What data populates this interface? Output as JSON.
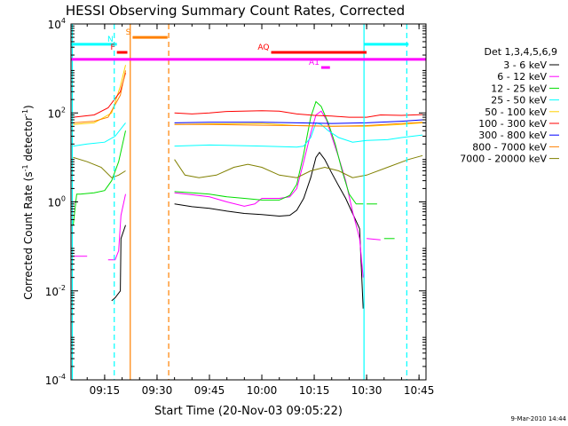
{
  "chart_data": {
    "type": "line",
    "title": "HESSI Observing Summary Count Rates, Corrected",
    "xlabel": "Start Time (20-Nov-03 09:05:22)",
    "ylabel_main": "Corrected Count Rate (s",
    "ylabel_exp1": "-1",
    "ylabel_mid": " detector",
    "ylabel_exp2": "-1",
    "ylabel_end": ")",
    "yscale": "log",
    "ylim": [
      0.0001,
      10000
    ],
    "xlim": [
      "09:05:22",
      "10:47:00"
    ],
    "xticks": [
      "09:15",
      "09:30",
      "09:45",
      "10:00",
      "10:15",
      "10:30",
      "10:45"
    ],
    "yticks": [
      {
        "base": "10",
        "exp": "-4",
        "value": 0.0001
      },
      {
        "base": "10",
        "exp": "-2",
        "value": 0.01
      },
      {
        "base": "10",
        "exp": "0",
        "value": 1
      },
      {
        "base": "10",
        "exp": "2",
        "value": 100
      },
      {
        "base": "10",
        "exp": "4",
        "value": 10000
      }
    ],
    "legend_title": "Det 1,3,4,5,6,9",
    "legend_position": "right",
    "series": [
      {
        "name": "3 - 6 keV",
        "color": "#000000",
        "segments": [
          [
            [
              "09:17:00",
              0.006
            ],
            [
              "09:18:00",
              0.007
            ],
            [
              "09:19:30",
              0.01
            ],
            [
              "09:19:40",
              0.15
            ],
            [
              "09:21:00",
              0.3
            ]
          ],
          [
            [
              "09:35:00",
              0.9
            ],
            [
              "09:40:00",
              0.78
            ],
            [
              "09:45:00",
              0.72
            ],
            [
              "09:50:00",
              0.62
            ],
            [
              "09:55:00",
              0.55
            ],
            [
              "10:00:00",
              0.52
            ],
            [
              "10:05:00",
              0.48
            ],
            [
              "10:08:00",
              0.5
            ],
            [
              "10:10:00",
              0.65
            ],
            [
              "10:12:00",
              1.2
            ],
            [
              "10:14:00",
              3.5
            ],
            [
              "10:15:30",
              10
            ],
            [
              "10:16:30",
              13
            ],
            [
              "10:18:00",
              9
            ],
            [
              "10:20:00",
              4.5
            ],
            [
              "10:22:00",
              2.3
            ],
            [
              "10:24:00",
              1.2
            ],
            [
              "10:26:00",
              0.55
            ],
            [
              "10:28:00",
              0.25
            ],
            [
              "10:29:00",
              0.004
            ]
          ]
        ]
      },
      {
        "name": "6 - 12 keV",
        "color": "#ff00ff",
        "segments": [
          [
            [
              "09:06:00",
              0.06
            ],
            [
              "09:10:00",
              0.06
            ]
          ],
          [
            [
              "09:16:00",
              0.05
            ],
            [
              "09:18:00",
              0.05
            ],
            [
              "09:19:00",
              0.08
            ],
            [
              "09:19:40",
              0.5
            ],
            [
              "09:21:00",
              1.5
            ]
          ],
          [
            [
              "09:35:00",
              1.6
            ],
            [
              "09:40:00",
              1.45
            ],
            [
              "09:45:00",
              1.3
            ],
            [
              "09:50:00",
              1.0
            ],
            [
              "09:55:00",
              0.8
            ],
            [
              "09:58:00",
              0.9
            ],
            [
              "10:00:00",
              1.2
            ],
            [
              "10:05:00",
              1.2
            ],
            [
              "10:08:00",
              1.3
            ],
            [
              "10:10:00",
              2
            ],
            [
              "10:12:00",
              8
            ],
            [
              "10:14:00",
              35
            ],
            [
              "10:15:30",
              90
            ],
            [
              "10:17:00",
              110
            ],
            [
              "10:18:30",
              70
            ],
            [
              "10:20:00",
              30
            ],
            [
              "10:22:00",
              10
            ],
            [
              "10:24:00",
              3
            ],
            [
              "10:26:00",
              0.6
            ],
            [
              "10:28:00",
              0.15
            ],
            [
              "10:29:00",
              0.02
            ]
          ],
          [
            [
              "10:30:00",
              0.15
            ],
            [
              "10:34:00",
              0.14
            ]
          ]
        ]
      },
      {
        "name": "12 - 25 keV",
        "color": "#00dd00",
        "segments": [
          [
            [
              "09:06:00",
              0.3
            ],
            [
              "09:07:00",
              1.5
            ],
            [
              "09:08:00",
              1.5
            ],
            [
              "09:12:00",
              1.6
            ],
            [
              "09:15:00",
              1.8
            ],
            [
              "09:17:00",
              3
            ],
            [
              "09:19:00",
              8
            ],
            [
              "09:21:00",
              40
            ]
          ],
          [
            [
              "09:35:00",
              1.7
            ],
            [
              "09:40:00",
              1.6
            ],
            [
              "09:45:00",
              1.5
            ],
            [
              "09:50:00",
              1.3
            ],
            [
              "09:55:00",
              1.2
            ],
            [
              "10:00:00",
              1.1
            ],
            [
              "10:05:00",
              1.1
            ],
            [
              "10:08:00",
              1.4
            ],
            [
              "10:10:00",
              2.5
            ],
            [
              "10:12:00",
              12
            ],
            [
              "10:14:00",
              80
            ],
            [
              "10:15:30",
              180
            ],
            [
              "10:17:00",
              140
            ],
            [
              "10:19:00",
              60
            ],
            [
              "10:21:00",
              20
            ],
            [
              "10:23:00",
              5
            ],
            [
              "10:25:00",
              1.5
            ],
            [
              "10:27:00",
              0.9
            ],
            [
              "10:29:00",
              0.9
            ]
          ],
          [
            [
              "10:30:00",
              0.9
            ],
            [
              "10:33:00",
              0.9
            ]
          ],
          [
            [
              "10:35:00",
              0.15
            ],
            [
              "10:38:00",
              0.15
            ]
          ]
        ]
      },
      {
        "name": "25 - 50 keV",
        "color": "#00ffff",
        "segments": [
          [
            [
              "09:06:00",
              18
            ],
            [
              "09:10:00",
              20
            ],
            [
              "09:15:00",
              22
            ],
            [
              "09:18:00",
              30
            ],
            [
              "09:21:00",
              60
            ]
          ],
          [
            [
              "09:35:00",
              18
            ],
            [
              "09:45:00",
              19
            ],
            [
              "10:00:00",
              18
            ],
            [
              "10:10:00",
              17
            ],
            [
              "10:12:00",
              18
            ],
            [
              "10:14:00",
              28
            ],
            [
              "10:15:30",
              60
            ],
            [
              "10:17:00",
              55
            ],
            [
              "10:19:00",
              40
            ],
            [
              "10:22:00",
              28
            ],
            [
              "10:26:00",
              22
            ],
            [
              "10:30:00",
              24
            ],
            [
              "10:36:00",
              25
            ],
            [
              "10:40:00",
              28
            ],
            [
              "10:46:00",
              32
            ]
          ]
        ]
      },
      {
        "name": "50 - 100 keV",
        "color": "#ffd000",
        "segments": [
          [
            [
              "09:06:00",
              55
            ],
            [
              "09:12:00",
              60
            ],
            [
              "09:17:00",
              100
            ],
            [
              "09:19:30",
              400
            ],
            [
              "09:21:00",
              1200
            ]
          ],
          [
            [
              "09:35:00",
              55
            ],
            [
              "09:45:00",
              57
            ],
            [
              "10:00:00",
              58
            ],
            [
              "10:10:00",
              52
            ],
            [
              "10:20:00",
              50
            ],
            [
              "10:30:00",
              50
            ],
            [
              "10:40:00",
              55
            ],
            [
              "10:46:00",
              60
            ]
          ]
        ]
      },
      {
        "name": "100 - 300 keV",
        "color": "#ff0000",
        "segments": [
          [
            [
              "09:06:00",
              80
            ],
            [
              "09:12:00",
              90
            ],
            [
              "09:16:00",
              130
            ],
            [
              "09:19:30",
              300
            ],
            [
              "09:21:00",
              800
            ]
          ],
          [
            [
              "09:35:00",
              100
            ],
            [
              "09:40:00",
              95
            ],
            [
              "09:45:00",
              100
            ],
            [
              "09:50:00",
              108
            ],
            [
              "10:00:00",
              112
            ],
            [
              "10:05:00",
              110
            ],
            [
              "10:10:00",
              95
            ],
            [
              "10:15:00",
              88
            ],
            [
              "10:20:00",
              85
            ],
            [
              "10:25:00",
              80
            ],
            [
              "10:30:00",
              80
            ],
            [
              "10:34:00",
              90
            ],
            [
              "10:40:00",
              88
            ],
            [
              "10:46:00",
              92
            ]
          ]
        ]
      },
      {
        "name": "300 - 800 keV",
        "color": "#0000ff",
        "segments": [
          [
            [
              "09:35:00",
              60
            ],
            [
              "09:45:00",
              62
            ],
            [
              "10:00:00",
              62
            ],
            [
              "10:10:00",
              60
            ],
            [
              "10:20:00",
              58
            ],
            [
              "10:30:00",
              60
            ],
            [
              "10:40:00",
              65
            ],
            [
              "10:46:00",
              70
            ]
          ]
        ]
      },
      {
        "name": "800 - 7000 keV",
        "color": "#ff8000",
        "segments": [
          [
            [
              "09:06:00",
              60
            ],
            [
              "09:12:00",
              65
            ],
            [
              "09:16:00",
              80
            ],
            [
              "09:19:30",
              250
            ],
            [
              "09:21:00",
              900
            ]
          ],
          [
            [
              "09:35:00",
              55
            ],
            [
              "09:45:00",
              55
            ],
            [
              "10:00:00",
              53
            ],
            [
              "10:10:00",
              52
            ],
            [
              "10:20:00",
              50
            ],
            [
              "10:30:00",
              52
            ],
            [
              "10:40:00",
              58
            ],
            [
              "10:46:00",
              62
            ]
          ]
        ]
      },
      {
        "name": "7000 - 20000 keV",
        "color": "#808000",
        "segments": [
          [
            [
              "09:06:00",
              10
            ],
            [
              "09:10:00",
              8
            ],
            [
              "09:14:00",
              6
            ],
            [
              "09:17:00",
              3.5
            ],
            [
              "09:19:00",
              4
            ],
            [
              "09:21:00",
              5
            ]
          ],
          [
            [
              "09:35:00",
              9
            ],
            [
              "09:38:00",
              4
            ],
            [
              "09:42:00",
              3.5
            ],
            [
              "09:47:00",
              4
            ],
            [
              "09:52:00",
              6
            ],
            [
              "09:56:00",
              7
            ],
            [
              "10:00:00",
              6
            ],
            [
              "10:05:00",
              4
            ],
            [
              "10:10:00",
              3.5
            ],
            [
              "10:14:00",
              5
            ],
            [
              "10:18:00",
              6
            ],
            [
              "10:22:00",
              5
            ],
            [
              "10:26:00",
              3.5
            ],
            [
              "10:30:00",
              4
            ],
            [
              "10:36:00",
              6
            ],
            [
              "10:42:00",
              9
            ],
            [
              "10:46:00",
              11
            ]
          ]
        ]
      }
    ],
    "vertical_lines": [
      {
        "time": "09:05:45",
        "color": "#00ffff",
        "style": "solid"
      },
      {
        "time": "09:17:45",
        "color": "#00ffff",
        "style": "dashed"
      },
      {
        "time": "09:22:20",
        "color": "#ff8000",
        "style": "solid"
      },
      {
        "time": "09:33:20",
        "color": "#ff8000",
        "style": "dashed"
      },
      {
        "time": "10:29:15",
        "color": "#00ffff",
        "style": "solid"
      },
      {
        "time": "10:41:30",
        "color": "#00ffff",
        "style": "dashed"
      }
    ],
    "flag_bars": [
      {
        "start": "09:05:30",
        "end": "09:18:00",
        "value": 3500,
        "color": "#00ffff",
        "label": ""
      },
      {
        "start": "10:29:15",
        "end": "10:42:00",
        "value": 3500,
        "color": "#00ffff",
        "label": ""
      },
      {
        "start": "09:18:00",
        "end": "09:18:30",
        "value": 3500,
        "color": "#00ffff",
        "label": "N"
      },
      {
        "start": "09:23:00",
        "end": "09:33:00",
        "value": 5000,
        "color": "#ff8000",
        "label": "S"
      },
      {
        "start": "09:18:30",
        "end": "09:21:30",
        "value": 2300,
        "color": "#ff0000",
        "label": "F"
      },
      {
        "start": "10:02:40",
        "end": "10:30:00",
        "value": 2300,
        "color": "#ff0000",
        "label": "AQ"
      },
      {
        "start": "09:05:30",
        "end": "10:47:00",
        "value": 1600,
        "color": "#ff00ff",
        "label": ""
      },
      {
        "start": "10:17:00",
        "end": "10:19:30",
        "value": 1050,
        "color": "#ff00ff",
        "label": "A1"
      }
    ]
  },
  "footer_date": "9-Mar-2010 14:44"
}
